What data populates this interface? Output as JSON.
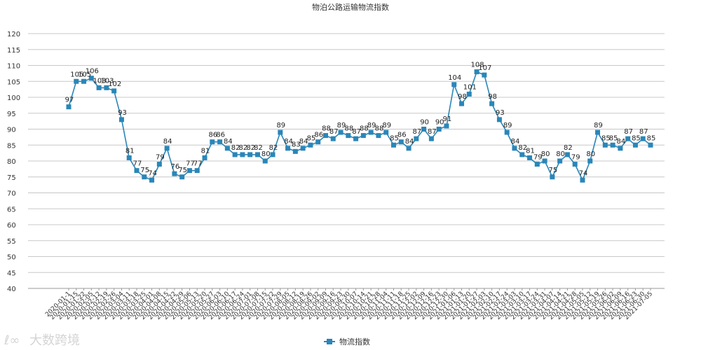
{
  "chart_data": {
    "type": "line",
    "title": "物泊公路运输物流指数",
    "ylim": [
      40,
      120
    ],
    "yticks": [
      40,
      45,
      50,
      55,
      60,
      65,
      70,
      75,
      80,
      85,
      90,
      95,
      100,
      105,
      110,
      115,
      120
    ],
    "grid": "horizontal",
    "legend_position": "bottom",
    "color": "#2a86b8",
    "series": [
      {
        "name": "物流指数",
        "values": [
          97,
          105,
          105,
          106,
          103,
          103,
          102,
          93,
          81,
          77,
          75,
          74,
          79,
          84,
          76,
          75,
          77,
          77,
          81,
          86,
          86,
          84,
          82,
          82,
          82,
          82,
          80,
          82,
          89,
          84,
          83,
          84,
          85,
          86,
          88,
          87,
          89,
          88,
          87,
          88,
          89,
          88,
          89,
          85,
          86,
          84,
          87,
          90,
          87,
          90,
          91,
          104,
          98,
          101,
          108,
          107,
          98,
          93,
          89,
          84,
          82,
          81,
          79,
          80,
          75,
          80,
          82,
          79,
          74,
          80,
          89,
          85,
          85,
          84,
          87,
          85,
          87,
          85
        ]
      }
    ],
    "x": [
      "2020-01-1",
      "2020-01-15",
      "2020-01-22",
      "2020-02-05",
      "2020-02-12",
      "2020-02-19",
      "2020-02-26",
      "2020-03-04",
      "2020-03-11",
      "2020-03-18",
      "2020-03-25",
      "2020-04-01",
      "2020-04-08",
      "2020-04-15",
      "2020-04-22",
      "2020-04-29",
      "2020-05-06",
      "2020-05-13",
      "2020-05-20",
      "2020-05-27",
      "2020-06-03",
      "2020-06-10",
      "2020-06-17",
      "2020-06-24",
      "2020-07-01",
      "2020-07-08",
      "2020-07-15",
      "2020-07-22",
      "2020-07-29",
      "2020-08-05",
      "2020-08-12",
      "2020-08-19",
      "2020-08-26",
      "2020-09-02",
      "2020-09-09",
      "2020-09-16",
      "2020-09-23",
      "2020-09-30",
      "2020-10-07",
      "2020-10-14",
      "2020-10-21",
      "2020-10-28",
      "2020-11-04",
      "2020-11-11",
      "2020-11-18",
      "2020-11-25",
      "2020-12-02",
      "2020-12-09",
      "2020-12-16",
      "2020-12-23",
      "2020-12-30",
      "2021-01-06",
      "2021-01-13",
      "2021-01-20",
      "2021-01-27",
      "2021-02-03",
      "2021-02-10",
      "2021-02-17",
      "2021-02-24",
      "2021-03-03",
      "2021-03-10",
      "2021-03-17",
      "2021-03-24",
      "2021-03-31",
      "2021-04-07",
      "2021-04-14",
      "2021-04-21",
      "2021-04-28",
      "2021-05-05",
      "2021-05-12",
      "2021-05-19",
      "2021-05-26",
      "2021-06-02",
      "2021-06-09",
      "2021-06-16",
      "2021-06-23",
      "2021-06-30",
      "2021-07-05"
    ]
  },
  "watermark": {
    "logo_text": "ℓ∞",
    "text": "大数跨境"
  }
}
